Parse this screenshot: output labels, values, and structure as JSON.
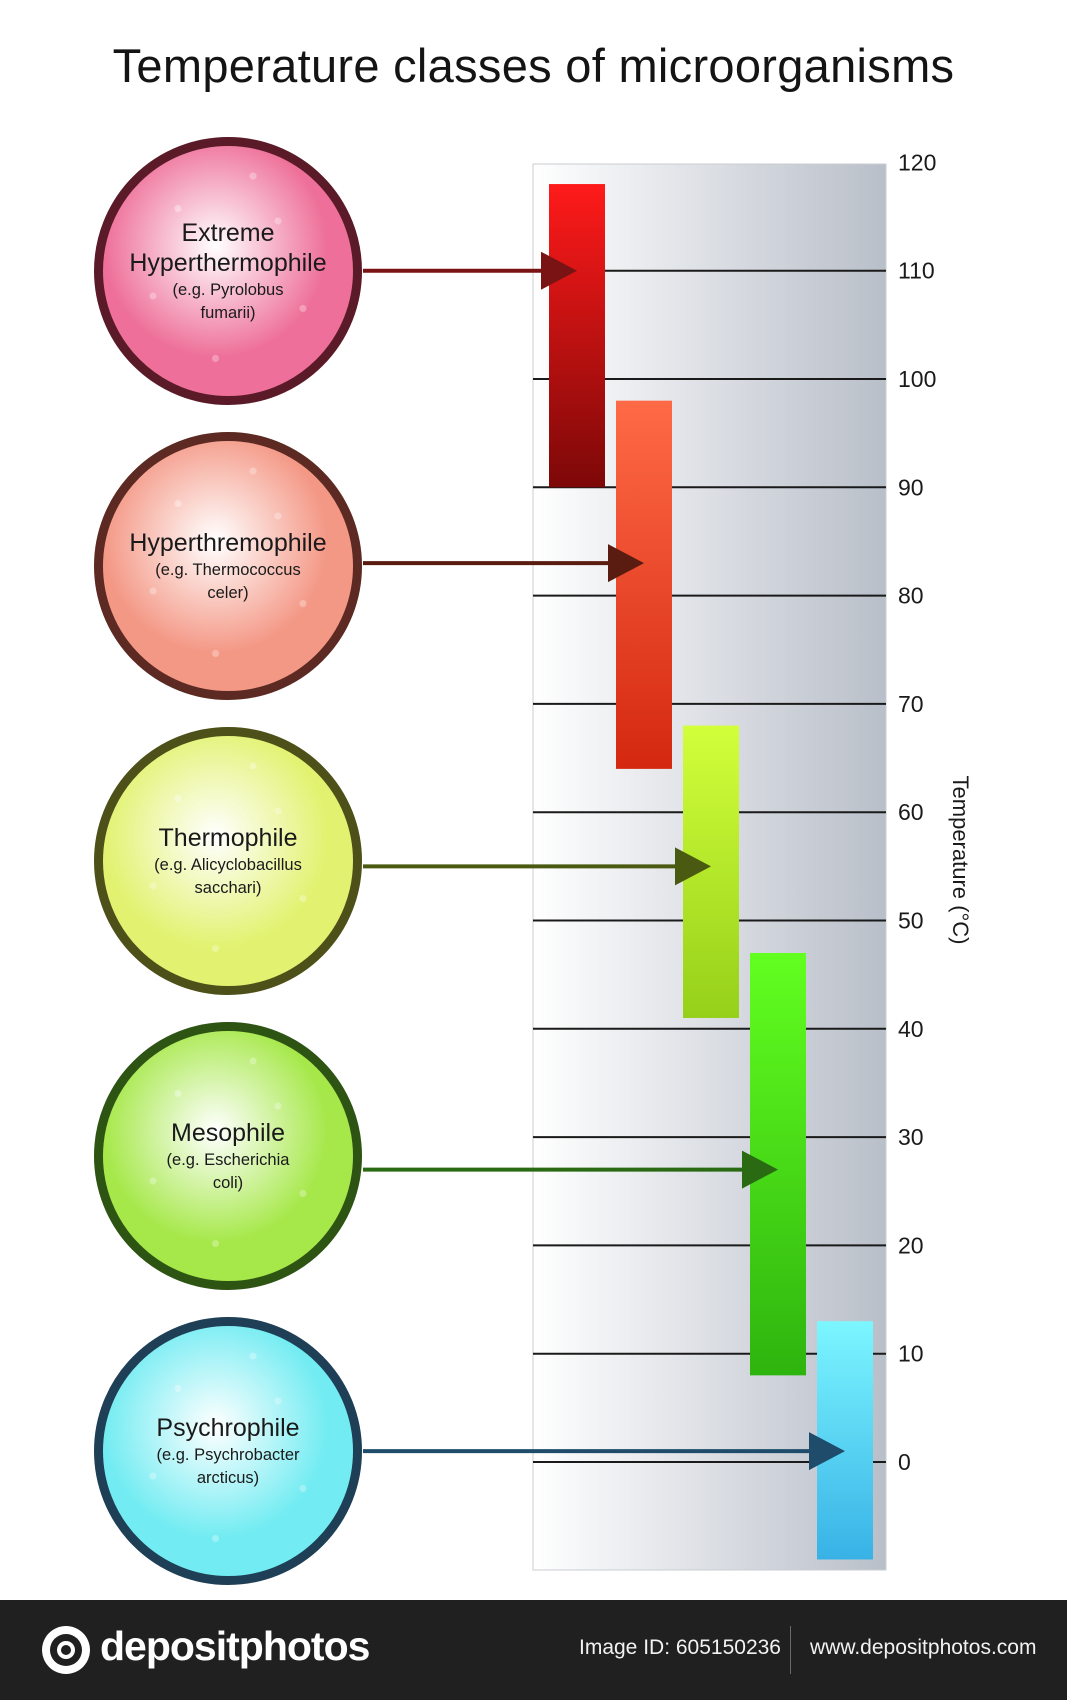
{
  "title": "Temperature classes of microorganisms",
  "classes": [
    {
      "name_lines": [
        "Extreme",
        "Hyperthermophile"
      ],
      "example_lines": [
        "(e.g. Pyrolobus",
        "fumarii)"
      ],
      "circle_color": "#ee6f99",
      "border_color": "#5a1a28",
      "bar_color_top": "#ff1a1a",
      "bar_color_bottom": "#7d0808",
      "arrow_color": "#7a1414"
    },
    {
      "name_lines": [
        "Hyperthremophile"
      ],
      "example_lines": [
        "(e.g. Thermococcus",
        "celer)"
      ],
      "circle_color": "#f49886",
      "border_color": "#5c2a22",
      "bar_color_top": "#ff6a46",
      "bar_color_bottom": "#d42810",
      "arrow_color": "#5a1c10"
    },
    {
      "name_lines": [
        "Thermophile"
      ],
      "example_lines": [
        "(e.g. Alicyclobacillus",
        "sacchari)"
      ],
      "circle_color": "#e2f270",
      "border_color": "#4d5018",
      "bar_color_top": "#d2ff3a",
      "bar_color_bottom": "#96d01a",
      "arrow_color": "#4a5a10"
    },
    {
      "name_lines": [
        "Mesophile"
      ],
      "example_lines": [
        "(e.g. Escherichia",
        "coli)"
      ],
      "circle_color": "#a6e84a",
      "border_color": "#2e5414",
      "bar_color_top": "#62ff20",
      "bar_color_bottom": "#2eb40e",
      "arrow_color": "#2a6a12"
    },
    {
      "name_lines": [
        "Psychrophile"
      ],
      "example_lines": [
        "(e.g. Psychrobacter",
        "arcticus)"
      ],
      "circle_color": "#72ecf2",
      "border_color": "#1e3f56",
      "bar_color_top": "#7cf6ff",
      "bar_color_bottom": "#38b2e6",
      "arrow_color": "#1e4c6a"
    }
  ],
  "chart_data": {
    "type": "bar",
    "orientation": "floating-vertical-range",
    "title": "Temperature classes of microorganisms",
    "ylabel": "Temperature (°C)",
    "ylim": [
      -9,
      120
    ],
    "yticks": [
      0,
      10,
      20,
      30,
      40,
      50,
      60,
      70,
      80,
      90,
      100,
      110,
      120
    ],
    "grid": true,
    "legend": "none",
    "series": [
      {
        "name": "Extreme Hyperthermophile",
        "min": 90,
        "max": 118,
        "arrow_at": 110
      },
      {
        "name": "Hyperthremophile",
        "min": 64,
        "max": 98,
        "arrow_at": 83
      },
      {
        "name": "Thermophile",
        "min": 41,
        "max": 68,
        "arrow_at": 55
      },
      {
        "name": "Mesophile",
        "min": 8,
        "max": 47,
        "arrow_at": 27
      },
      {
        "name": "Psychrophile",
        "min": -9,
        "max": 13,
        "arrow_at": 1
      }
    ]
  },
  "footer": {
    "brand": "depositphotos",
    "image_id": "Image ID: 605150236",
    "url": "www.depositphotos.com"
  }
}
